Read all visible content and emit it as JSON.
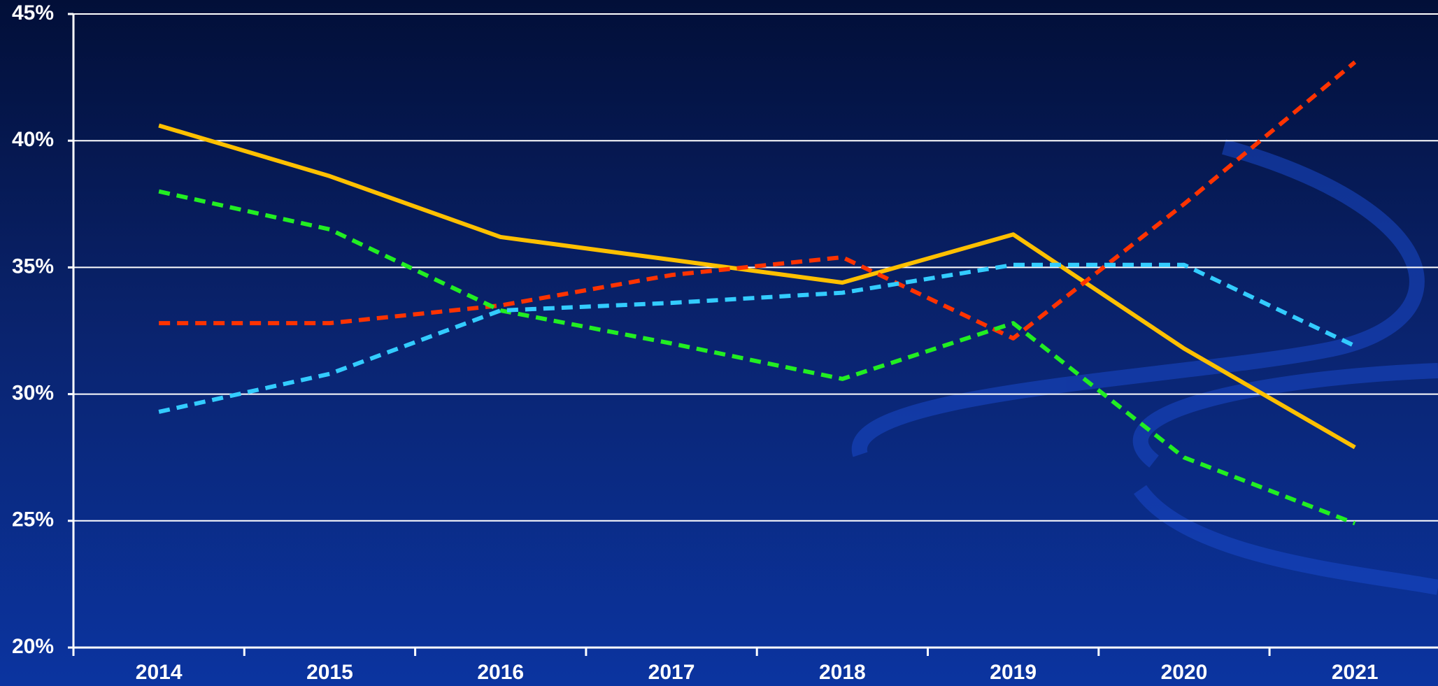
{
  "chart_data": {
    "type": "line",
    "categories": [
      "2014",
      "2015",
      "2016",
      "2017",
      "2018",
      "2019",
      "2020",
      "2021"
    ],
    "series": [
      {
        "color": "#ffc000",
        "dash": "solid",
        "values": [
          40.6,
          38.6,
          36.2,
          35.3,
          34.4,
          36.3,
          31.8,
          27.9
        ]
      },
      {
        "color": "#ff3300",
        "dash": "dashed",
        "values": [
          32.8,
          32.8,
          33.5,
          34.7,
          35.4,
          32.2,
          37.5,
          43.1
        ]
      },
      {
        "color": "#22ee22",
        "dash": "dashed",
        "values": [
          38.0,
          36.5,
          33.3,
          32.0,
          30.6,
          32.8,
          27.5,
          24.9
        ]
      },
      {
        "color": "#33ccff",
        "dash": "dashed",
        "values": [
          29.3,
          30.8,
          33.3,
          33.6,
          34.0,
          35.1,
          35.1,
          31.9
        ]
      }
    ],
    "ylim": [
      20,
      45
    ],
    "yticks": [
      {
        "value": 20,
        "label": "20%"
      },
      {
        "value": 25,
        "label": "25%"
      },
      {
        "value": 30,
        "label": "30%"
      },
      {
        "value": 35,
        "label": "35%"
      },
      {
        "value": 40,
        "label": "40%"
      },
      {
        "value": 45,
        "label": "45%"
      }
    ],
    "grid": true
  }
}
